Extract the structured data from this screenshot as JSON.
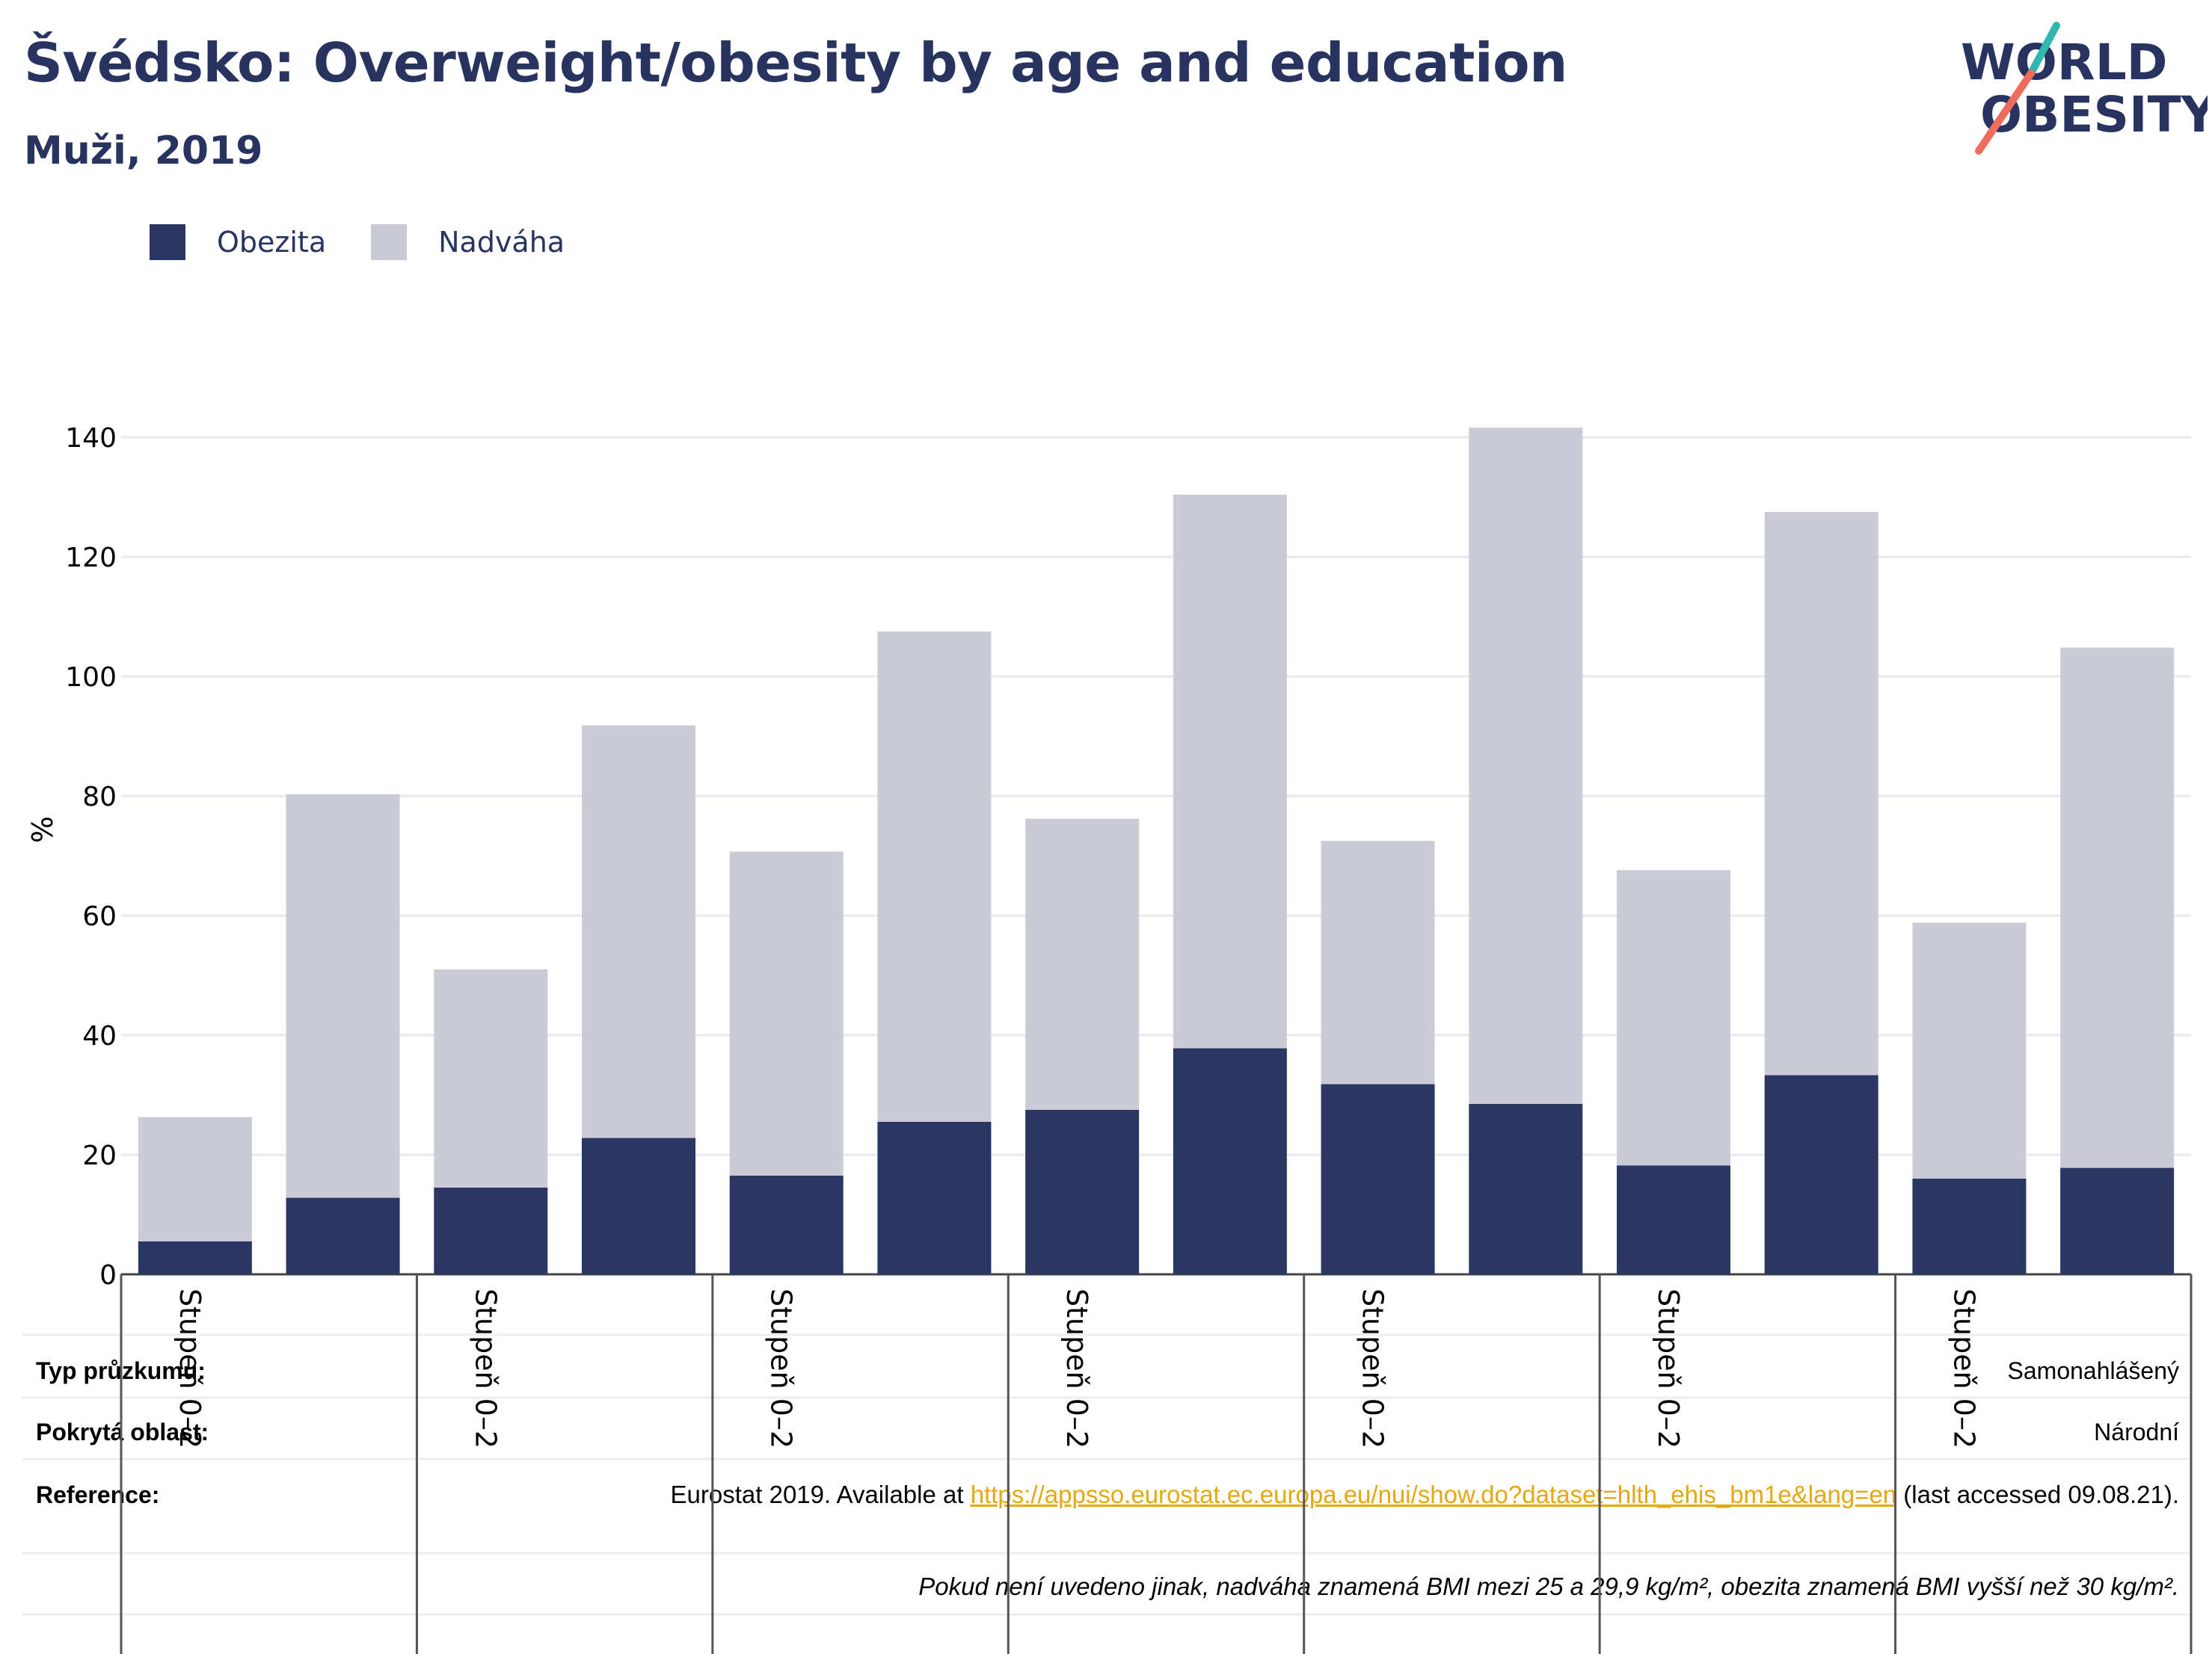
{
  "header": {
    "title": "Švédsko: Overweight/obesity by age and education",
    "subtitle": "Muži, 2019"
  },
  "logo": {
    "line1": "WORLD",
    "line2": "OBESITY"
  },
  "colors": {
    "obesity": "#2a3663",
    "overweight": "#cacbd6",
    "gridline": "#e8e8ee",
    "text": "#28335f",
    "link": "#e8a60f",
    "logo_teal": "#2fb7b0",
    "logo_red": "#ef6b5b"
  },
  "chart_data": {
    "type": "bar",
    "stacked": true,
    "ylabel": "%",
    "ylim": [
      0,
      145
    ],
    "yticks": [
      0,
      20,
      40,
      60,
      80,
      100,
      120,
      140
    ],
    "grid": true,
    "legend_position": "top-left",
    "category_labels": [
      "Stupeň 0–2",
      "Stupeň 0–2",
      "Stupeň 0–2",
      "Stupeň 0–2",
      "Stupeň 0–2",
      "Stupeň 0–2",
      "Stupeň 0–2"
    ],
    "bars_per_group": 2,
    "series": [
      {
        "name": "Obezita",
        "values": [
          5.5,
          12.8,
          14.5,
          22.8,
          16.5,
          25.5,
          27.5,
          37.8,
          31.8,
          28.5,
          18.2,
          33.3,
          16.0,
          17.8
        ]
      },
      {
        "name": "Nadváha",
        "values": [
          20.8,
          67.5,
          36.5,
          69.0,
          54.2,
          82.0,
          48.7,
          92.6,
          40.7,
          113.1,
          49.4,
          94.2,
          42.8,
          87.0
        ]
      }
    ]
  },
  "info": {
    "survey_label": "Typ průzkumu:",
    "survey_value": "Samonahlášený",
    "area_label": "Pokrytá oblast:",
    "area_value": "Národní",
    "reference_label": "Reference:",
    "reference_prefix": "Eurostat 2019. Available at ",
    "reference_link": "https://appsso.eurostat.ec.europa.eu/nui/show.do?dataset=hlth_ehis_bm1e&lang=en",
    "reference_suffix": " (last accessed 09.08.21).",
    "note": "Pokud není uvedeno jinak, nadváha znamená BMI mezi 25 a 29,9 kg/m², obezita znamená BMI vyšší než 30 kg/m²."
  }
}
